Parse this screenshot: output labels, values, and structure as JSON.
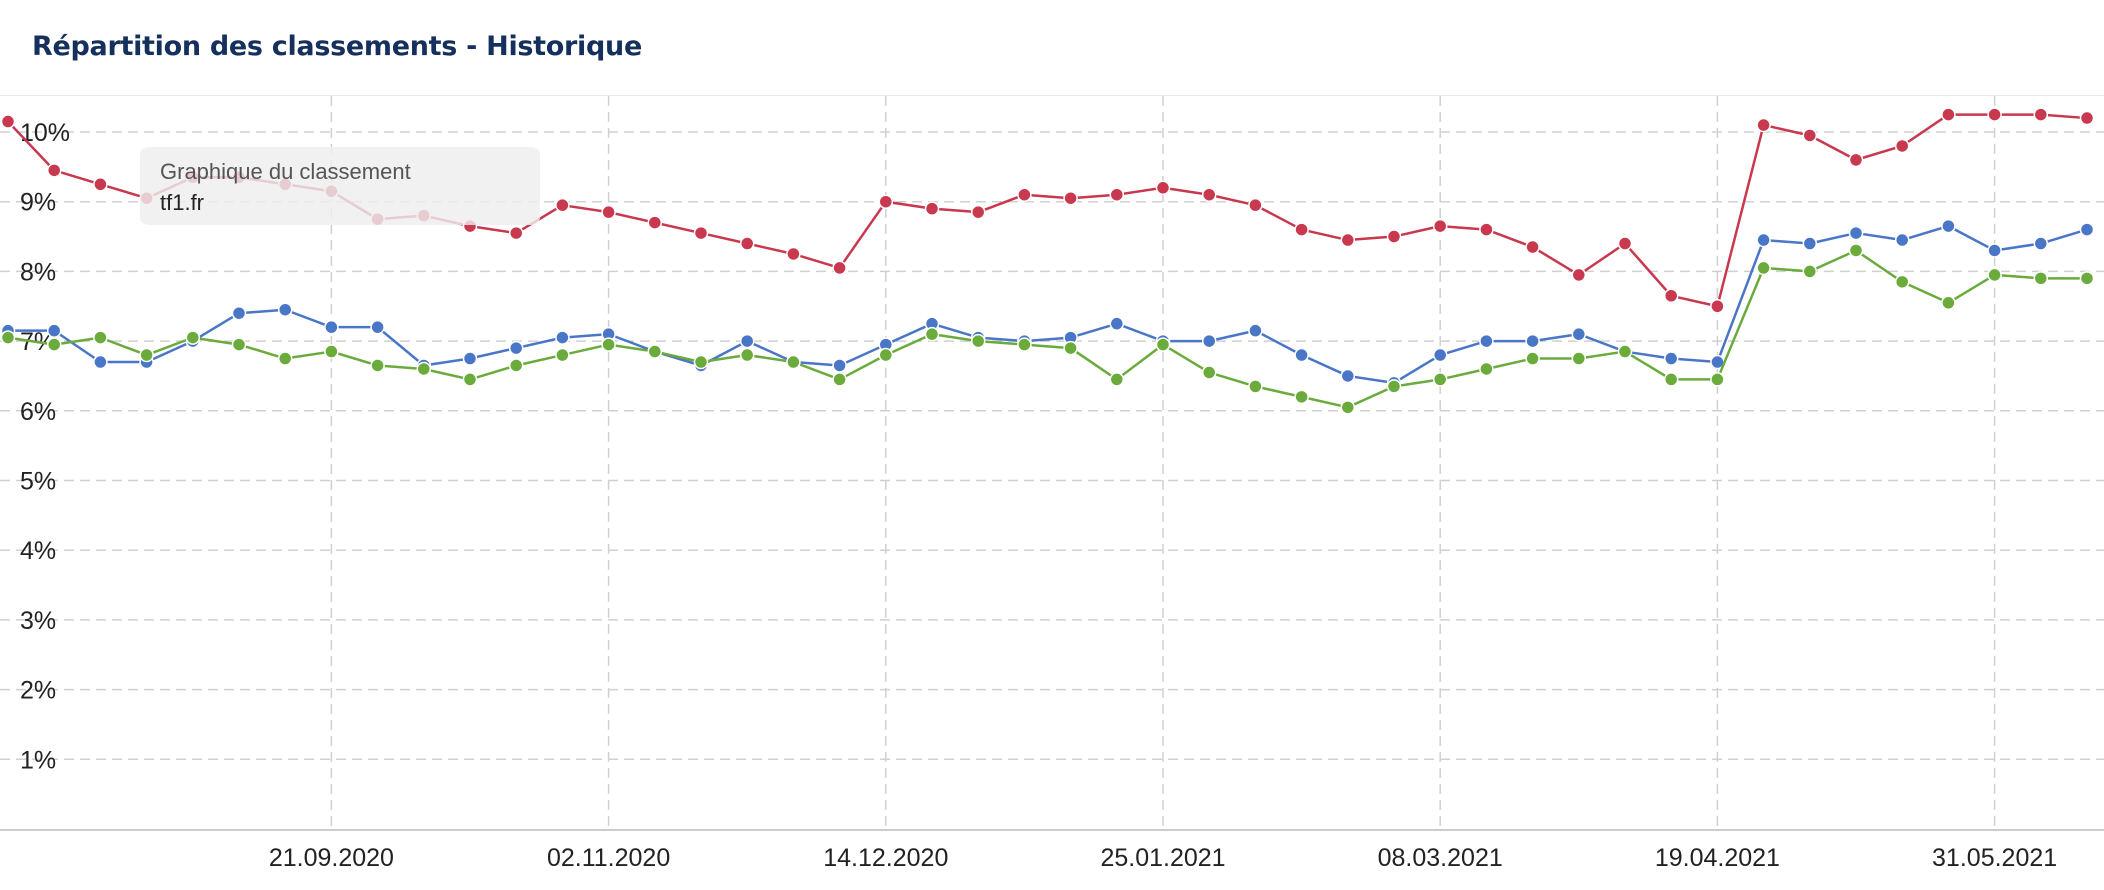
{
  "header": {
    "title": "Répartition des classements - Historique"
  },
  "tooltip": {
    "heading": "Graphique du classement",
    "domain": "tf1.fr"
  },
  "chart_data": {
    "type": "line",
    "title": "Répartition des classements - Historique",
    "ylim": [
      0,
      10.5
    ],
    "y_ticks": [
      1,
      2,
      3,
      4,
      5,
      6,
      7,
      8,
      9,
      10
    ],
    "y_tick_labels": [
      "1%",
      "2%",
      "3%",
      "4%",
      "5%",
      "6%",
      "7%",
      "8%",
      "9%",
      "10%"
    ],
    "x_tick_labels": [
      "21.09.2020",
      "02.11.2020",
      "14.12.2020",
      "25.01.2021",
      "08.03.2021",
      "19.04.2021",
      "31.05.2021"
    ],
    "x_tick_index": [
      7,
      13,
      19,
      25,
      31,
      37,
      43
    ],
    "grid": true,
    "legend": "none",
    "colors": {
      "red": "#c8384e",
      "blue": "#4a76c8",
      "green": "#6aab3c",
      "grid": "#d0d0d0"
    },
    "series": [
      {
        "color": "#c8384e",
        "values": [
          10.15,
          9.45,
          9.25,
          9.05,
          9.35,
          9.35,
          9.25,
          9.15,
          8.75,
          8.8,
          8.65,
          8.55,
          8.95,
          8.85,
          8.7,
          8.55,
          8.4,
          8.25,
          8.05,
          9.0,
          8.9,
          8.85,
          9.1,
          9.05,
          9.1,
          9.2,
          9.1,
          8.95,
          8.6,
          8.45,
          8.5,
          8.65,
          8.6,
          8.35,
          7.95,
          8.4,
          7.65,
          7.5,
          10.1,
          9.95,
          9.6,
          9.8,
          10.25,
          10.25,
          10.25,
          10.2
        ]
      },
      {
        "color": "#4a76c8",
        "values": [
          7.15,
          7.15,
          6.7,
          6.7,
          7.0,
          7.4,
          7.45,
          7.2,
          7.2,
          6.65,
          6.75,
          6.9,
          7.05,
          7.1,
          6.85,
          6.65,
          7.0,
          6.7,
          6.65,
          6.95,
          7.25,
          7.05,
          7.0,
          7.05,
          7.25,
          7.0,
          7.0,
          7.15,
          6.8,
          6.5,
          6.4,
          6.8,
          7.0,
          7.0,
          7.1,
          6.85,
          6.75,
          6.7,
          8.45,
          8.4,
          8.55,
          8.45,
          8.65,
          8.3,
          8.4,
          8.6
        ]
      },
      {
        "color": "#6aab3c",
        "values": [
          7.05,
          6.95,
          7.05,
          6.8,
          7.05,
          6.95,
          6.75,
          6.85,
          6.65,
          6.6,
          6.45,
          6.65,
          6.8,
          6.95,
          6.85,
          6.7,
          6.8,
          6.7,
          6.45,
          6.8,
          7.1,
          7.0,
          6.95,
          6.9,
          6.45,
          6.95,
          6.55,
          6.35,
          6.2,
          6.05,
          6.35,
          6.45,
          6.6,
          6.75,
          6.75,
          6.85,
          6.45,
          6.45,
          8.05,
          8.0,
          8.3,
          7.85,
          7.55,
          7.95,
          7.9,
          7.9
        ]
      }
    ]
  }
}
